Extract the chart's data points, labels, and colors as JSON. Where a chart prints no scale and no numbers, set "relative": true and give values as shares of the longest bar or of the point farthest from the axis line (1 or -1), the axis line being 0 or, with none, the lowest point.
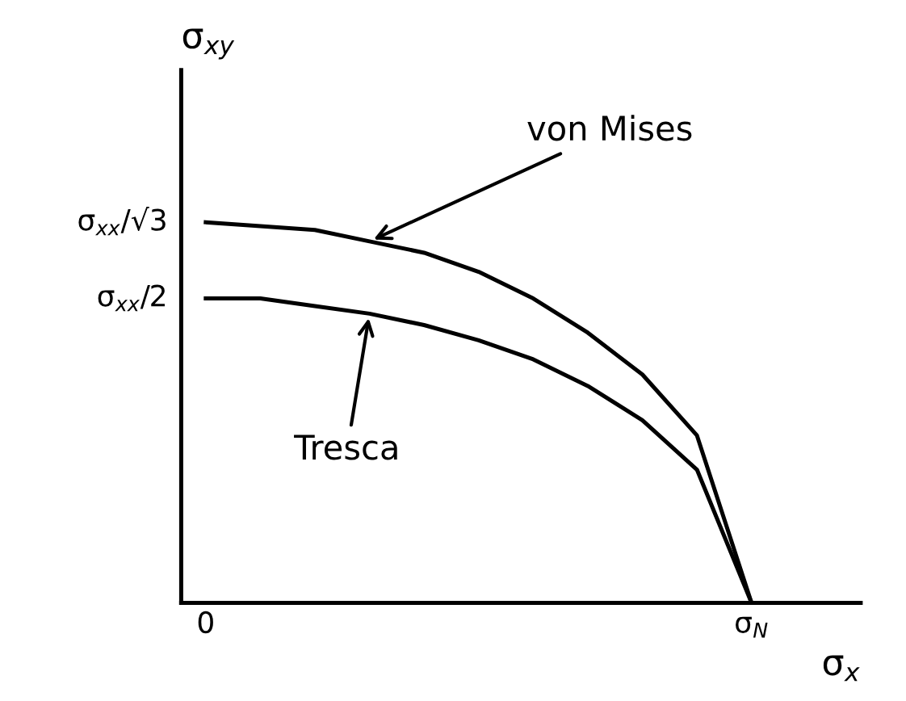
{
  "chart_data": {
    "type": "line",
    "xlabel": "σ$_{x}$",
    "ylabel": "σ$_{xy}$",
    "relative": true,
    "categories": [
      "0",
      null,
      null,
      null,
      null,
      null,
      null,
      null,
      null,
      null,
      "σ$_{N}$"
    ],
    "series": [
      {
        "color": "#000000",
        "values": [
          1,
          0.99,
          0.98,
          0.95,
          0.92,
          0.87,
          0.8,
          0.71,
          0.6,
          0.44,
          0
        ]
      },
      {
        "color": "#000000",
        "values": [
          0.8,
          0.8,
          0.78,
          0.76,
          0.73,
          0.69,
          0.64,
          0.57,
          0.48,
          0.35,
          0
        ]
      }
    ],
    "annotations": [
      "σ$_{xx}$/√3",
      "σ$_{xx}$/2",
      "von Mises",
      "Tresca"
    ],
    "grid": false,
    "marker": "none",
    "line_style": "solid"
  }
}
